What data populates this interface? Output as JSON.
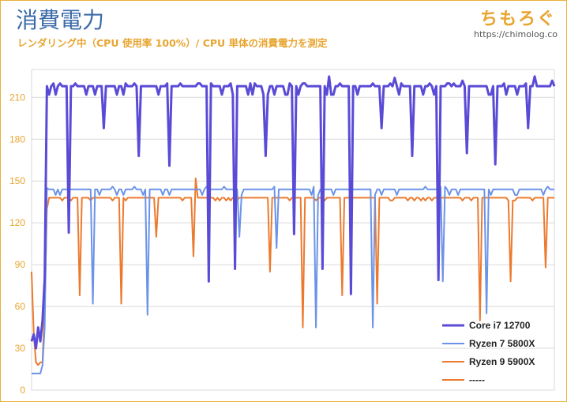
{
  "header": {
    "title": "消費電力",
    "subtitle": "レンダリング中（CPU 使用率 100%）/ CPU 単体の消費電力を測定",
    "brand": "ちもろぐ",
    "brand_url": "https://chimolog.co"
  },
  "colors": {
    "frame": "#e8b13a",
    "grid": "#d9d9d9",
    "tick_text": "#e8a530"
  },
  "chart_data": {
    "type": "line",
    "title": "消費電力",
    "subtitle": "レンダリング中（CPU 使用率 100%）/ CPU 単体の消費電力を測定",
    "xlabel": "",
    "ylabel": "",
    "ylim": [
      0,
      230
    ],
    "yticks": [
      0,
      30,
      60,
      90,
      120,
      150,
      180,
      210
    ],
    "grid": true,
    "legend_position": "bottom-right",
    "n_samples": 240,
    "series": [
      {
        "name": "Core i7 12700",
        "color": "#5a4bd6",
        "width": 3,
        "ramp": [
          [
            0,
            35
          ],
          [
            1,
            40
          ],
          [
            2,
            30
          ],
          [
            3,
            45
          ],
          [
            4,
            35
          ],
          [
            5,
            50
          ],
          [
            6,
            80
          ],
          [
            7,
            218
          ],
          [
            8,
            212
          ]
        ],
        "base": 218,
        "jitter": [
          212,
          218,
          220
        ],
        "dips": [
          [
            17,
            113
          ],
          [
            33,
            188
          ],
          [
            49,
            168
          ],
          [
            63,
            161
          ],
          [
            81,
            78
          ],
          [
            93,
            87
          ],
          [
            107,
            168
          ],
          [
            120,
            112
          ],
          [
            133,
            87
          ],
          [
            146,
            69
          ],
          [
            160,
            188
          ],
          [
            174,
            168
          ],
          [
            186,
            79
          ],
          [
            199,
            170
          ],
          [
            212,
            162
          ],
          [
            227,
            188
          ]
        ],
        "peaks": [
          [
            124,
            220
          ],
          [
            136,
            225
          ],
          [
            166,
            224
          ],
          [
            197,
            222
          ],
          [
            230,
            225
          ],
          [
            238,
            222
          ]
        ]
      },
      {
        "name": "Ryzen 7 5800X",
        "color": "#6b93e8",
        "width": 2,
        "ramp": [
          [
            0,
            12
          ],
          [
            1,
            12
          ],
          [
            2,
            12
          ],
          [
            3,
            12
          ],
          [
            4,
            12
          ],
          [
            5,
            18
          ],
          [
            6,
            45
          ],
          [
            7,
            145
          ]
        ],
        "base": 144,
        "jitter": [
          140,
          144,
          146
        ],
        "dips": [
          [
            28,
            62
          ],
          [
            53,
            54
          ],
          [
            95,
            110
          ],
          [
            112,
            102
          ],
          [
            130,
            45
          ],
          [
            156,
            45
          ],
          [
            188,
            78
          ],
          [
            208,
            55
          ]
        ],
        "peaks": []
      },
      {
        "name": "Ryzen 9 5900X",
        "color": "#ec7a2e",
        "width": 2,
        "ramp": [
          [
            0,
            85
          ],
          [
            1,
            40
          ],
          [
            2,
            20
          ],
          [
            3,
            18
          ],
          [
            4,
            20
          ],
          [
            5,
            20
          ],
          [
            6,
            60
          ],
          [
            7,
            130
          ],
          [
            8,
            138
          ]
        ],
        "base": 138,
        "jitter": [
          136,
          138,
          138
        ],
        "dips": [
          [
            22,
            68
          ],
          [
            41,
            62
          ],
          [
            57,
            110
          ],
          [
            74,
            96
          ],
          [
            109,
            85
          ],
          [
            124,
            45
          ],
          [
            142,
            68
          ],
          [
            158,
            62
          ],
          [
            205,
            50
          ],
          [
            219,
            78
          ],
          [
            235,
            88
          ]
        ],
        "peaks": [
          [
            75,
            152
          ]
        ]
      },
      {
        "name": "-----",
        "color": "#ec7a2e",
        "width": 2,
        "ramp": [],
        "base": null,
        "jitter": [],
        "dips": [],
        "peaks": []
      }
    ]
  }
}
